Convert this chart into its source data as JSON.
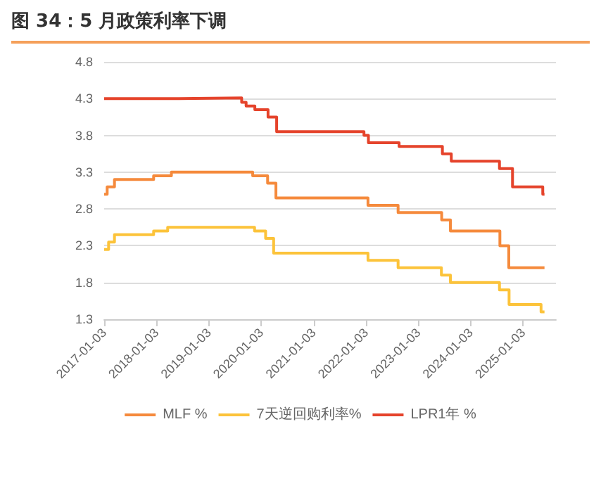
{
  "chart_data": {
    "type": "step",
    "title": "图 34：5 月政策利率下调",
    "xlim": [
      "2017-01-03",
      "2025-08-20"
    ],
    "xticks": [
      "2017-01-03",
      "2018-01-03",
      "2019-01-03",
      "2020-01-03",
      "2021-01-03",
      "2022-01-03",
      "2023-01-03",
      "2024-01-03",
      "2025-01-03"
    ],
    "ylim": [
      1.3,
      4.8
    ],
    "yticks": [
      1.3,
      1.8,
      2.3,
      2.8,
      3.3,
      3.8,
      4.3,
      4.8
    ],
    "grid": "y",
    "legend": "bottom",
    "marker": "none",
    "line_style": "solid",
    "series": [
      {
        "name": "MLF %",
        "color": "#f58a3c",
        "x": [
          "2017-01-03",
          "2017-01-24",
          "2017-03-16",
          "2017-12-14",
          "2018-04-17",
          "2019-11-05",
          "2020-02-17",
          "2020-04-15",
          "2022-01-17",
          "2022-08-15",
          "2023-06-15",
          "2023-08-15",
          "2024-07-25",
          "2024-09-25",
          "2025-06-01"
        ],
        "values": [
          3.0,
          3.1,
          3.2,
          3.25,
          3.3,
          3.25,
          3.15,
          2.95,
          2.85,
          2.75,
          2.65,
          2.5,
          2.3,
          2.0,
          2.0
        ]
      },
      {
        "name": "7天逆回购利率%",
        "color": "#fcc33a",
        "x": [
          "2017-01-03",
          "2017-02-03",
          "2017-03-16",
          "2017-12-14",
          "2018-03-22",
          "2019-11-18",
          "2020-02-03",
          "2020-03-30",
          "2022-01-17",
          "2022-08-15",
          "2023-06-13",
          "2023-08-15",
          "2024-07-22",
          "2024-09-27",
          "2025-05-08",
          "2025-06-01"
        ],
        "values": [
          2.25,
          2.35,
          2.45,
          2.5,
          2.55,
          2.5,
          2.4,
          2.2,
          2.1,
          2.0,
          1.9,
          1.8,
          1.7,
          1.5,
          1.4,
          1.4
        ]
      },
      {
        "name": "LPR1年 %",
        "color": "#e5432b",
        "x": [
          "2017-01-03",
          "2018-05-01",
          "2019-08-20",
          "2019-09-20",
          "2019-11-20",
          "2020-02-20",
          "2020-04-20",
          "2021-12-20",
          "2022-01-20",
          "2022-08-22",
          "2023-06-20",
          "2023-08-21",
          "2024-07-22",
          "2024-10-21",
          "2025-05-20",
          "2025-06-01"
        ],
        "values": [
          4.3,
          4.31,
          4.25,
          4.2,
          4.15,
          4.05,
          3.85,
          3.8,
          3.7,
          3.65,
          3.55,
          3.45,
          3.35,
          3.1,
          3.0,
          3.0
        ]
      }
    ]
  }
}
